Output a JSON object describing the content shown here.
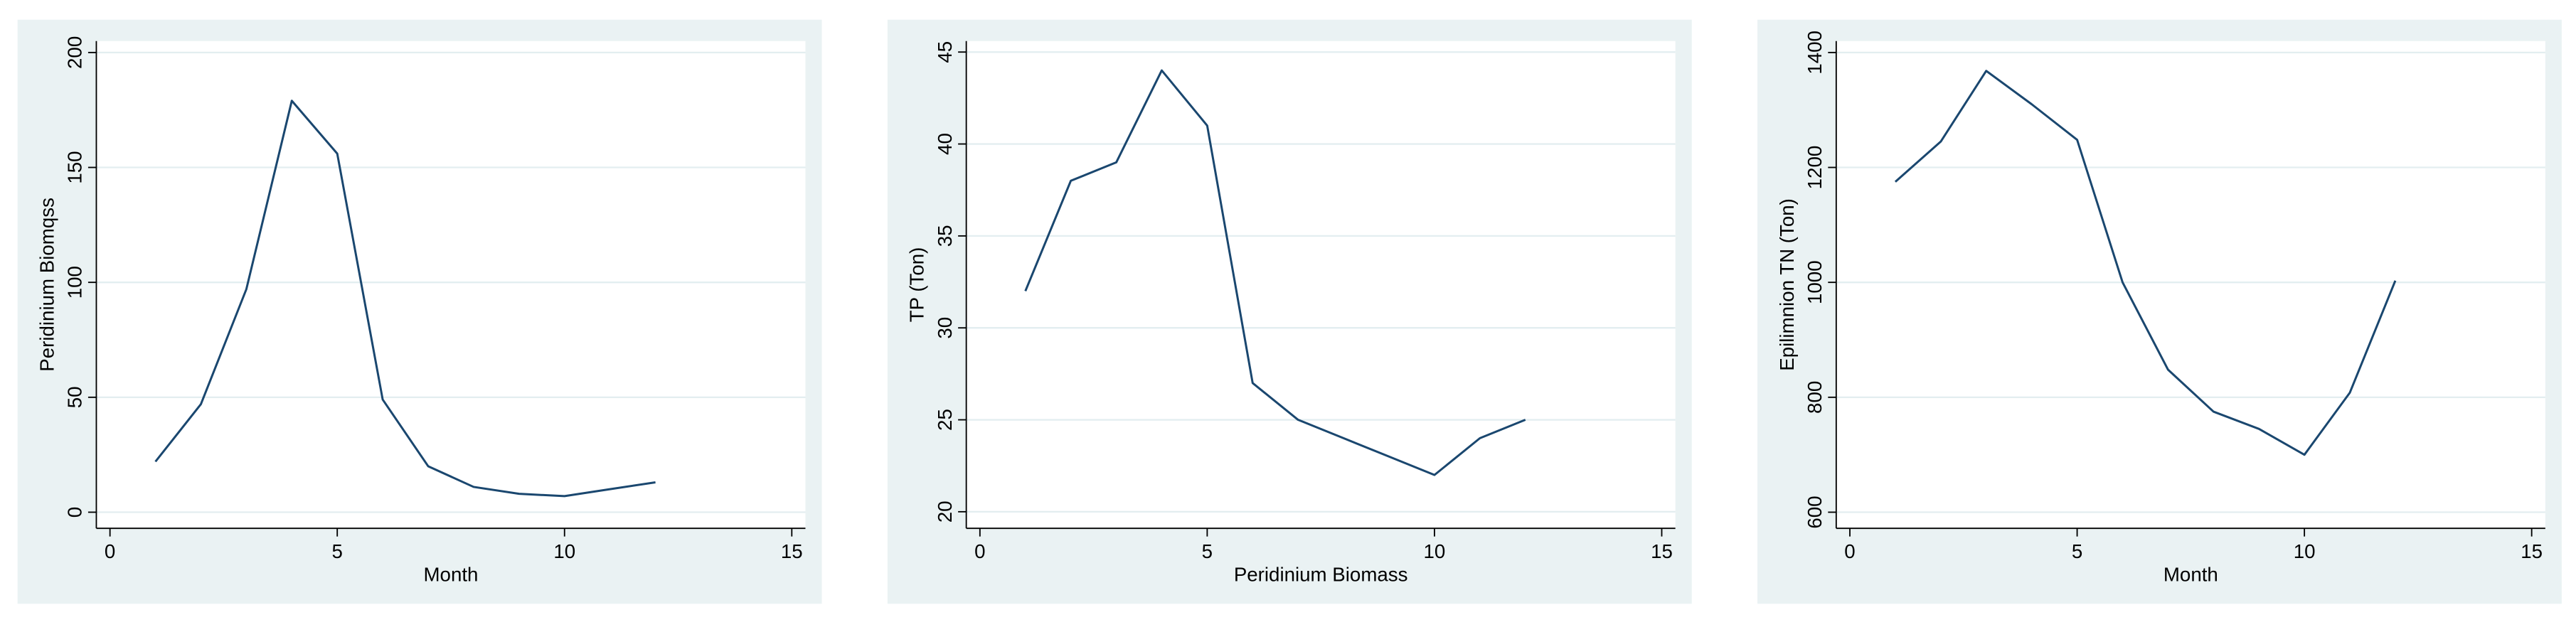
{
  "chart_data": [
    {
      "type": "line",
      "x_label": "Month",
      "y_label": "Peridinium Biomqss",
      "x": [
        1,
        2,
        3,
        4,
        5,
        6,
        7,
        8,
        9,
        10,
        11,
        12
      ],
      "series": [
        {
          "color": "#1a476f",
          "values": [
            22,
            47,
            97,
            179,
            156,
            49,
            20,
            11,
            8,
            7,
            10,
            13
          ]
        }
      ],
      "xlim": [
        -0.3,
        15.3
      ],
      "xticks": [
        0,
        5,
        10,
        15
      ],
      "ylim": [
        -7,
        205
      ],
      "yticks": [
        0,
        50,
        100,
        150,
        200
      ],
      "grid": true
    },
    {
      "type": "line",
      "x_label": "Peridinium Biomass",
      "y_label": "TP (Ton)",
      "x": [
        1,
        2,
        3,
        4,
        5,
        6,
        7,
        8,
        9,
        10,
        11,
        12
      ],
      "series": [
        {
          "color": "#1a476f",
          "values": [
            32,
            38,
            39,
            44,
            41,
            27,
            25,
            24,
            23,
            22,
            24,
            25
          ]
        }
      ],
      "xlim": [
        -0.3,
        15.3
      ],
      "xticks": [
        0,
        5,
        10,
        15
      ],
      "ylim": [
        19.1,
        45.6
      ],
      "yticks": [
        20,
        25,
        30,
        35,
        40,
        45
      ],
      "grid": true
    },
    {
      "type": "line",
      "x_label": "Month",
      "y_label": "Epilimnion TN (Ton)",
      "x": [
        1,
        2,
        3,
        4,
        5,
        6,
        7,
        8,
        9,
        10,
        11,
        12
      ],
      "series": [
        {
          "color": "#1a476f",
          "values": [
            1175,
            1245,
            1368,
            1310,
            1248,
            1000,
            848,
            775,
            745,
            700,
            808,
            1003
          ]
        }
      ],
      "xlim": [
        -0.3,
        15.3
      ],
      "xticks": [
        0,
        5,
        10,
        15
      ],
      "ylim": [
        572,
        1420
      ],
      "yticks": [
        600,
        800,
        1000,
        1200,
        1400
      ],
      "grid": true
    }
  ]
}
